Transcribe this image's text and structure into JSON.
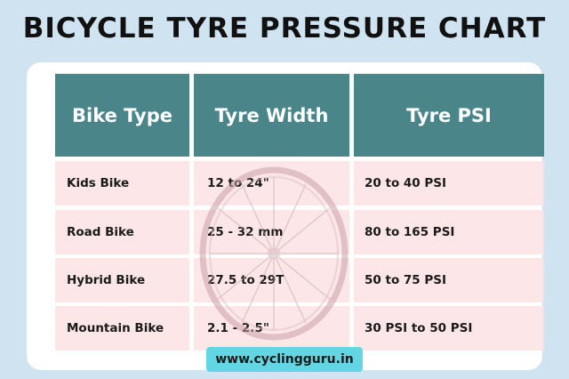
{
  "title": "BICYCLE TYRE PRESSURE CHART",
  "table": {
    "headers": [
      "Bike Type",
      "Tyre Width",
      "Tyre PSI"
    ],
    "rows": [
      [
        "Kids Bike",
        "12 to 24\"",
        "20 to 40 PSI"
      ],
      [
        "Road Bike",
        "25 - 32 mm",
        "80 to 165 PSI"
      ],
      [
        "Hybrid Bike",
        "27.5 to 29T",
        "50 to 75 PSI"
      ],
      [
        "Mountain Bike",
        "2.1 - 2.5\"",
        "30 PSI to 50 PSI"
      ]
    ]
  },
  "website": "www.cyclingguru.in",
  "colors": {
    "background": "#cfe3f0",
    "header": "#4a8589",
    "row": "#fde0e3",
    "url_badge": "#63d6e4"
  },
  "watermark_icon": "bicycle-wheel-icon"
}
